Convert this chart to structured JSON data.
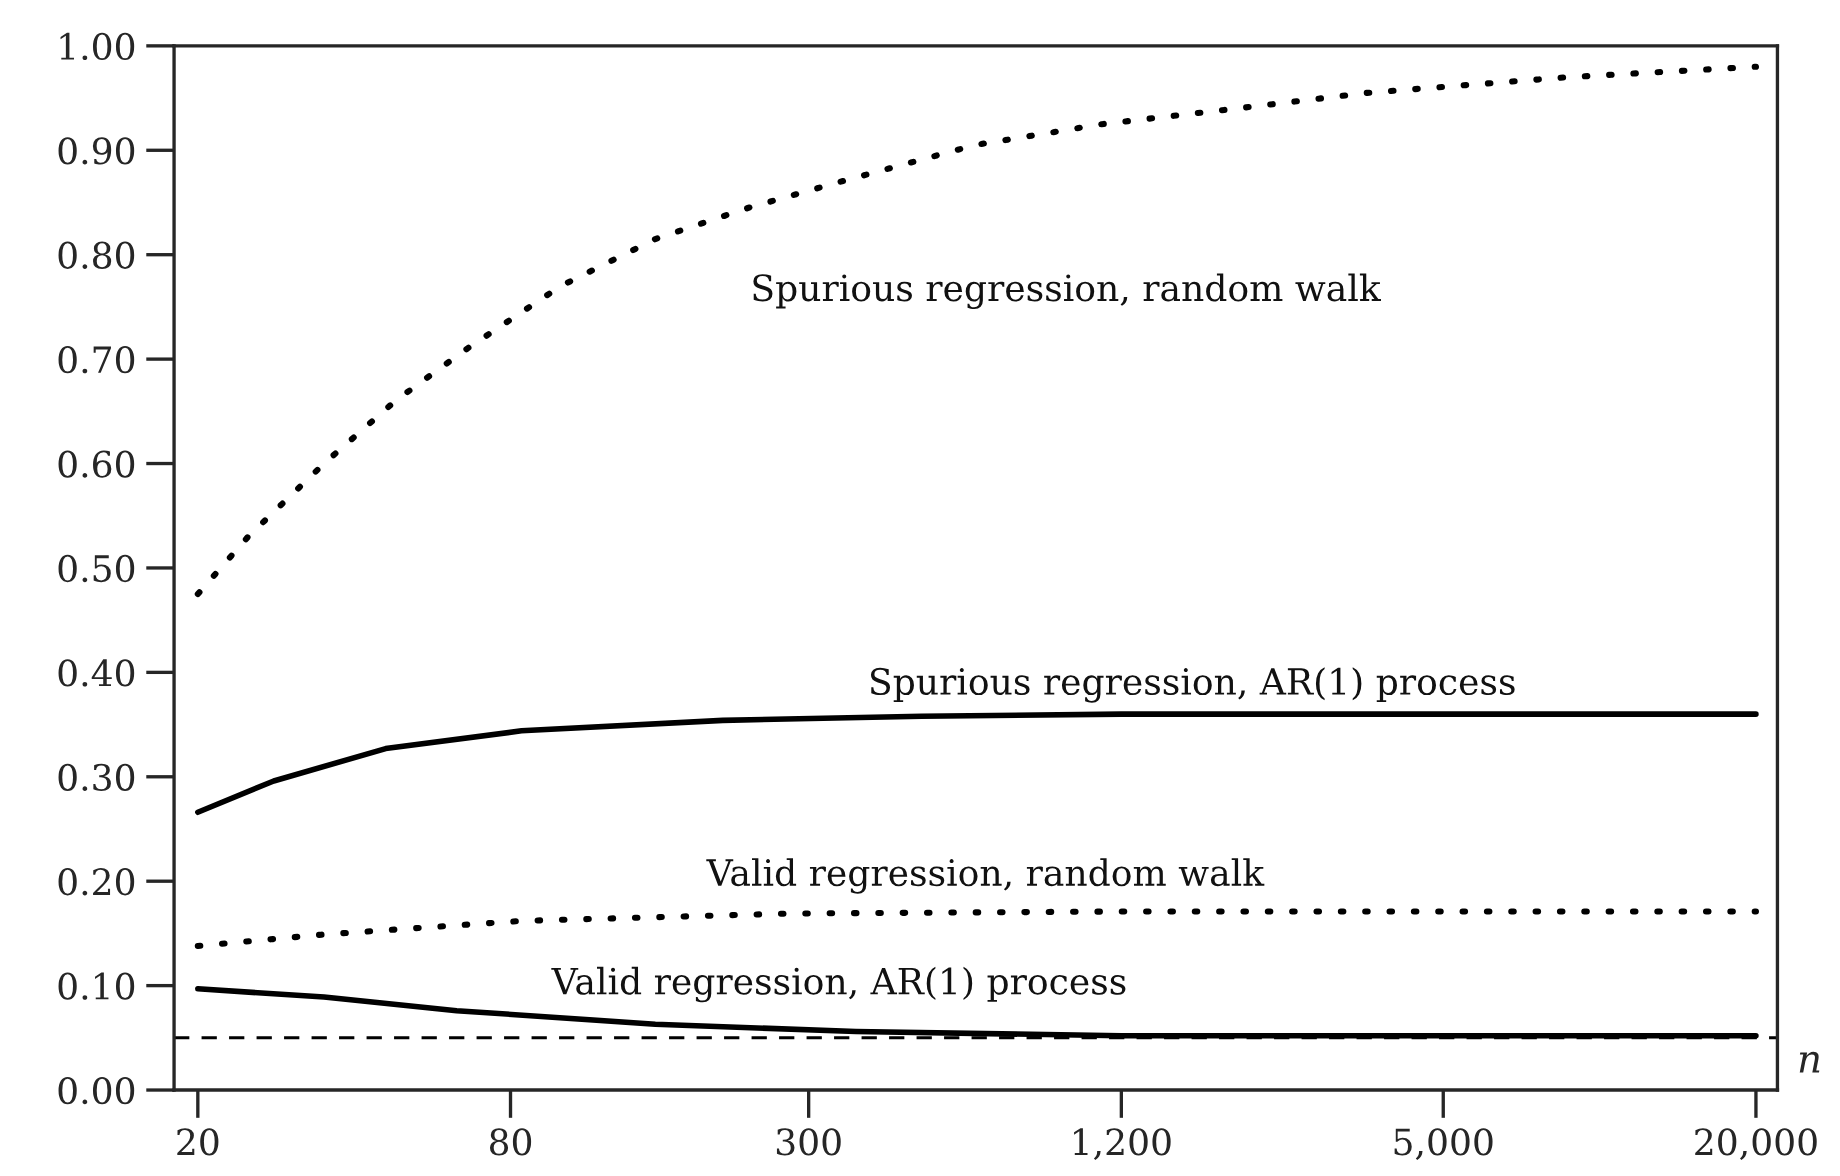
{
  "chart_data": {
    "type": "line",
    "xlabel": "n",
    "log": "x",
    "grid": false,
    "legend": false,
    "xlim": [
      18,
      22000
    ],
    "ylim": [
      0,
      1
    ],
    "xticks": [
      20,
      80,
      300,
      {
        "value": 1200,
        "label": "1,200"
      },
      {
        "value": 5000,
        "label": "5,000"
      },
      {
        "value": 20000,
        "label": "20,000"
      }
    ],
    "yticks": [
      {
        "value": 0,
        "label": "0.00"
      },
      {
        "value": 0.1,
        "label": "0.10"
      },
      {
        "value": 0.2,
        "label": "0.20"
      },
      {
        "value": 0.3,
        "label": "0.30"
      },
      {
        "value": 0.4,
        "label": "0.40"
      },
      {
        "value": 0.5,
        "label": "0.50"
      },
      {
        "value": 0.6,
        "label": "0.60"
      },
      {
        "value": 0.7,
        "label": "0.70"
      },
      {
        "value": 0.8,
        "label": "0.80"
      },
      {
        "value": 0.9,
        "label": "0.90"
      },
      {
        "value": 1,
        "label": "1.00"
      }
    ],
    "series": [
      {
        "name": "Spurious regression, random walk",
        "color": "#000000",
        "line_style": "dotted",
        "x": [
          20,
          25,
          35,
          48,
          66,
          100,
          152,
          230,
          346,
          627,
          1100,
          2000,
          3570,
          8670,
          20000
        ],
        "values": [
          0.475,
          0.53,
          0.6,
          0.66,
          0.71,
          0.77,
          0.815,
          0.845,
          0.87,
          0.905,
          0.925,
          0.94,
          0.955,
          0.97,
          0.98
        ]
      },
      {
        "name": "Spurious regression, AR(1) process",
        "color": "#000000",
        "line_style": "solid",
        "x": [
          20,
          28,
          46,
          84,
          205,
          495,
          1200,
          5000,
          20000
        ],
        "values": [
          0.266,
          0.296,
          0.327,
          0.344,
          0.354,
          0.358,
          0.36,
          0.36,
          0.36
        ]
      },
      {
        "name": "Valid regression, random walk",
        "color": "#000000",
        "line_style": "dotted",
        "x": [
          20,
          35,
          84,
          274,
          1200,
          5000,
          20000
        ],
        "values": [
          0.138,
          0.149,
          0.162,
          0.169,
          0.171,
          0.171,
          0.171
        ]
      },
      {
        "name": "Valid regression, AR(1) process",
        "color": "#000000",
        "line_style": "solid",
        "x": [
          20,
          35,
          63,
          152,
          370,
          1200,
          5000,
          20000
        ],
        "values": [
          0.097,
          0.089,
          0.076,
          0.063,
          0.056,
          0.052,
          0.052,
          0.052
        ]
      }
    ],
    "ref_lines": [
      {
        "axis": "y",
        "value": 0.05,
        "color": "#000000",
        "line_style": "dashed"
      }
    ]
  }
}
